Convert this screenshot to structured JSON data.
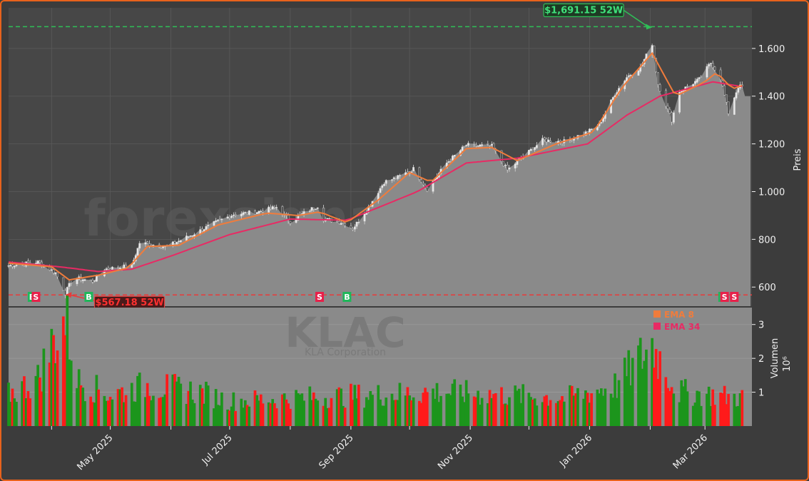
{
  "chart_data": [
    {
      "type": "candlestick",
      "ticker_watermark": "KLAC",
      "company_watermark": "KLA Corporation",
      "site_watermark": "forexsignale.trade",
      "ylabel": "Preis",
      "yticks": [
        "600",
        "800",
        "1.000",
        "1.200",
        "1.400",
        "1.600"
      ],
      "ytick_values": [
        600,
        800,
        1000,
        1200,
        1400,
        1600
      ],
      "ylim": [
        520,
        1770
      ],
      "xticks": [
        "May 2025",
        "Jul 2025",
        "Sep 2025",
        "Nov 2025",
        "Jan 2026",
        "Mar 2026"
      ],
      "xlim": [
        "2025-03-10",
        "2026-03-25"
      ],
      "high_52w": {
        "label": "$1,691.15 52W",
        "value": 1691.15,
        "date": "2026-02-02"
      },
      "low_52w": {
        "label": "$567.18 52W",
        "value": 567.18,
        "date": "2025-04-08"
      },
      "legend": [
        {
          "name": "EMA 8",
          "color": "#f07c3c"
        },
        {
          "name": "EMA 34",
          "color": "#e82a64"
        }
      ],
      "signals": [
        {
          "type": "B",
          "date": "2025-03-22",
          "color": "#1fb75a"
        },
        {
          "type": "S",
          "date": "2025-03-24",
          "color": "#e8204a"
        },
        {
          "type": "B",
          "date": "2025-04-20",
          "color": "#1fb75a"
        },
        {
          "type": "S",
          "date": "2025-08-16",
          "color": "#e8204a"
        },
        {
          "type": "B",
          "date": "2025-08-30",
          "color": "#1fb75a"
        },
        {
          "type": "B",
          "date": "2026-03-10",
          "color": "#1fb75a"
        },
        {
          "type": "S",
          "date": "2026-03-11",
          "color": "#e8204a"
        },
        {
          "type": "S",
          "date": "2026-03-16",
          "color": "#e8204a"
        }
      ],
      "price_anchors": [
        [
          "2025-03-10",
          690
        ],
        [
          "2025-03-25",
          705
        ],
        [
          "2025-04-03",
          660
        ],
        [
          "2025-04-08",
          575
        ],
        [
          "2025-04-12",
          640
        ],
        [
          "2025-04-22",
          625
        ],
        [
          "2025-04-28",
          675
        ],
        [
          "2025-05-12",
          690
        ],
        [
          "2025-05-16",
          785
        ],
        [
          "2025-05-30",
          770
        ],
        [
          "2025-06-12",
          820
        ],
        [
          "2025-06-25",
          875
        ],
        [
          "2025-07-03",
          905
        ],
        [
          "2025-07-15",
          915
        ],
        [
          "2025-07-25",
          935
        ],
        [
          "2025-08-01",
          875
        ],
        [
          "2025-08-10",
          920
        ],
        [
          "2025-08-15",
          940
        ],
        [
          "2025-08-18",
          885
        ],
        [
          "2025-08-28",
          870
        ],
        [
          "2025-09-02",
          845
        ],
        [
          "2025-09-10",
          935
        ],
        [
          "2025-09-18",
          1040
        ],
        [
          "2025-09-25",
          1060
        ],
        [
          "2025-10-03",
          1095
        ],
        [
          "2025-10-10",
          1010
        ],
        [
          "2025-10-20",
          1120
        ],
        [
          "2025-10-30",
          1195
        ],
        [
          "2025-11-12",
          1190
        ],
        [
          "2025-11-20",
          1090
        ],
        [
          "2025-11-27",
          1140
        ],
        [
          "2025-12-08",
          1215
        ],
        [
          "2025-12-19",
          1210
        ],
        [
          "2025-12-31",
          1250
        ],
        [
          "2026-01-06",
          1280
        ],
        [
          "2026-01-14",
          1410
        ],
        [
          "2026-01-20",
          1480
        ],
        [
          "2026-01-27",
          1520
        ],
        [
          "2026-02-02",
          1620
        ],
        [
          "2026-02-05",
          1450
        ],
        [
          "2026-02-12",
          1300
        ],
        [
          "2026-02-16",
          1420
        ],
        [
          "2026-02-26",
          1470
        ],
        [
          "2026-03-04",
          1540
        ],
        [
          "2026-03-09",
          1475
        ],
        [
          "2026-03-13",
          1330
        ],
        [
          "2026-03-18",
          1440
        ],
        [
          "2026-03-20",
          1440
        ]
      ],
      "ema8_anchors": [
        [
          "2025-03-10",
          700
        ],
        [
          "2025-04-01",
          685
        ],
        [
          "2025-04-10",
          630
        ],
        [
          "2025-04-25",
          650
        ],
        [
          "2025-05-10",
          680
        ],
        [
          "2025-05-20",
          770
        ],
        [
          "2025-06-05",
          775
        ],
        [
          "2025-06-25",
          860
        ],
        [
          "2025-07-20",
          910
        ],
        [
          "2025-08-05",
          900
        ],
        [
          "2025-08-16",
          915
        ],
        [
          "2025-08-30",
          870
        ],
        [
          "2025-09-15",
          965
        ],
        [
          "2025-10-01",
          1080
        ],
        [
          "2025-10-12",
          1040
        ],
        [
          "2025-10-30",
          1180
        ],
        [
          "2025-11-12",
          1185
        ],
        [
          "2025-11-25",
          1130
        ],
        [
          "2025-12-15",
          1200
        ],
        [
          "2026-01-03",
          1250
        ],
        [
          "2026-01-18",
          1440
        ],
        [
          "2026-02-02",
          1580
        ],
        [
          "2026-02-14",
          1400
        ],
        [
          "2026-03-01",
          1460
        ],
        [
          "2026-03-07",
          1500
        ],
        [
          "2026-03-15",
          1430
        ],
        [
          "2026-03-20",
          1445
        ]
      ],
      "ema34_anchors": [
        [
          "2025-03-10",
          705
        ],
        [
          "2025-04-05",
          685
        ],
        [
          "2025-04-25",
          665
        ],
        [
          "2025-05-12",
          675
        ],
        [
          "2025-06-01",
          730
        ],
        [
          "2025-07-01",
          820
        ],
        [
          "2025-08-01",
          885
        ],
        [
          "2025-08-30",
          880
        ],
        [
          "2025-10-05",
          1000
        ],
        [
          "2025-10-30",
          1120
        ],
        [
          "2025-11-25",
          1140
        ],
        [
          "2025-12-31",
          1200
        ],
        [
          "2026-01-20",
          1320
        ],
        [
          "2026-02-06",
          1400
        ],
        [
          "2026-03-05",
          1460
        ],
        [
          "2026-03-20",
          1440
        ]
      ],
      "close_last": 1400
    },
    {
      "type": "bar",
      "ylabel": "Volumen",
      "yunit": "10⁶",
      "yticks": [
        "1",
        "2",
        "3"
      ],
      "ytick_values": [
        1,
        2,
        3
      ],
      "ylim": [
        0,
        3.5
      ],
      "up_color": "#1c951c",
      "down_color": "#ff1a1a",
      "volume_anchors": [
        [
          "2025-03-10",
          1.0
        ],
        [
          "2025-03-25",
          1.5
        ],
        [
          "2025-04-04",
          3.0
        ],
        [
          "2025-04-08",
          3.4
        ],
        [
          "2025-04-15",
          1.4
        ],
        [
          "2025-05-01",
          1.0
        ],
        [
          "2025-05-20",
          1.3
        ],
        [
          "2025-06-15",
          1.1
        ],
        [
          "2025-07-01",
          0.8
        ],
        [
          "2025-08-01",
          0.9
        ],
        [
          "2025-09-15",
          1.0
        ],
        [
          "2025-10-15",
          1.1
        ],
        [
          "2025-11-15",
          1.0
        ],
        [
          "2025-12-20",
          0.9
        ],
        [
          "2026-01-15",
          1.3
        ],
        [
          "2026-02-02",
          2.6
        ],
        [
          "2026-02-15",
          1.1
        ],
        [
          "2026-03-20",
          0.9
        ]
      ]
    }
  ],
  "colors": {
    "background": "#3c3c3c",
    "panel": "#474747",
    "area_fill": "#8a8a8a",
    "grid": "#5a5a5a",
    "candle_up": "#e8e8e8",
    "candle_down": "#505050",
    "ema8": "#f07c3c",
    "ema34": "#e82a64",
    "high_line": "#2fbf57",
    "low_line": "#e83a3a",
    "border": "#e8621c"
  }
}
